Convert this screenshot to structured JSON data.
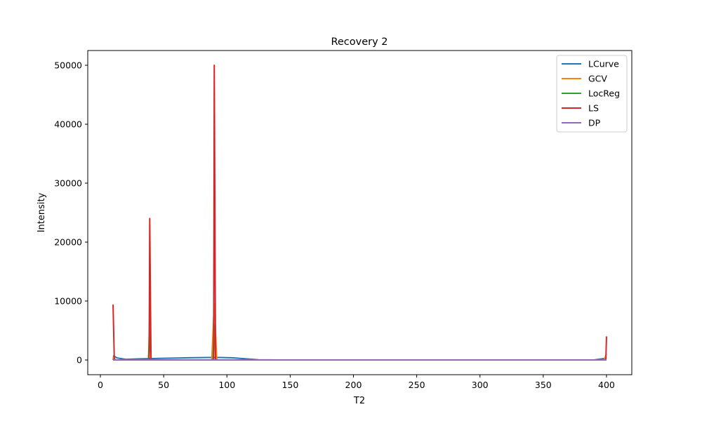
{
  "chart_data": {
    "type": "line",
    "title": "Recovery 2",
    "xlabel": "T2",
    "ylabel": "Intensity",
    "xlim": [
      -10,
      420
    ],
    "ylim": [
      -2500,
      52500
    ],
    "xticks": [
      0,
      50,
      100,
      150,
      200,
      250,
      300,
      350,
      400
    ],
    "yticks": [
      0,
      10000,
      20000,
      30000,
      40000,
      50000
    ],
    "grid": false,
    "legend": "top-right",
    "series": [
      {
        "name": "LCurve",
        "color": "#1f77b4",
        "points": [
          [
            10,
            0
          ],
          [
            10.5,
            700
          ],
          [
            13,
            350
          ],
          [
            20,
            100
          ],
          [
            30,
            180
          ],
          [
            50,
            280
          ],
          [
            70,
            370
          ],
          [
            85,
            420
          ],
          [
            95,
            420
          ],
          [
            105,
            350
          ],
          [
            115,
            200
          ],
          [
            125,
            30
          ],
          [
            140,
            0
          ],
          [
            390,
            0
          ],
          [
            400,
            300
          ]
        ]
      },
      {
        "name": "GCV",
        "color": "#ff7f0e",
        "points": [
          [
            10,
            0
          ],
          [
            10.5,
            500
          ],
          [
            12,
            0
          ],
          [
            38,
            0
          ],
          [
            39,
            8000
          ],
          [
            40,
            0
          ],
          [
            88,
            0
          ],
          [
            90,
            9500
          ],
          [
            92,
            0
          ],
          [
            398,
            0
          ],
          [
            400,
            1000
          ]
        ]
      },
      {
        "name": "LocReg",
        "color": "#2ca02c",
        "points": [
          [
            10,
            0
          ],
          [
            38,
            0
          ],
          [
            39,
            5000
          ],
          [
            40,
            0
          ],
          [
            89,
            0
          ],
          [
            90,
            6000
          ],
          [
            91,
            0
          ],
          [
            400,
            0
          ]
        ]
      },
      {
        "name": "LS",
        "color": "#d62728",
        "points": [
          [
            10,
            9400
          ],
          [
            11,
            0
          ],
          [
            38.5,
            0
          ],
          [
            39,
            24000
          ],
          [
            40,
            0
          ],
          [
            89.5,
            0
          ],
          [
            90,
            50000
          ],
          [
            91,
            0
          ],
          [
            399.5,
            0
          ],
          [
            400,
            4000
          ]
        ]
      },
      {
        "name": "DP",
        "color": "#9467bd",
        "points": [
          [
            10,
            0
          ],
          [
            400,
            0
          ]
        ]
      }
    ]
  }
}
